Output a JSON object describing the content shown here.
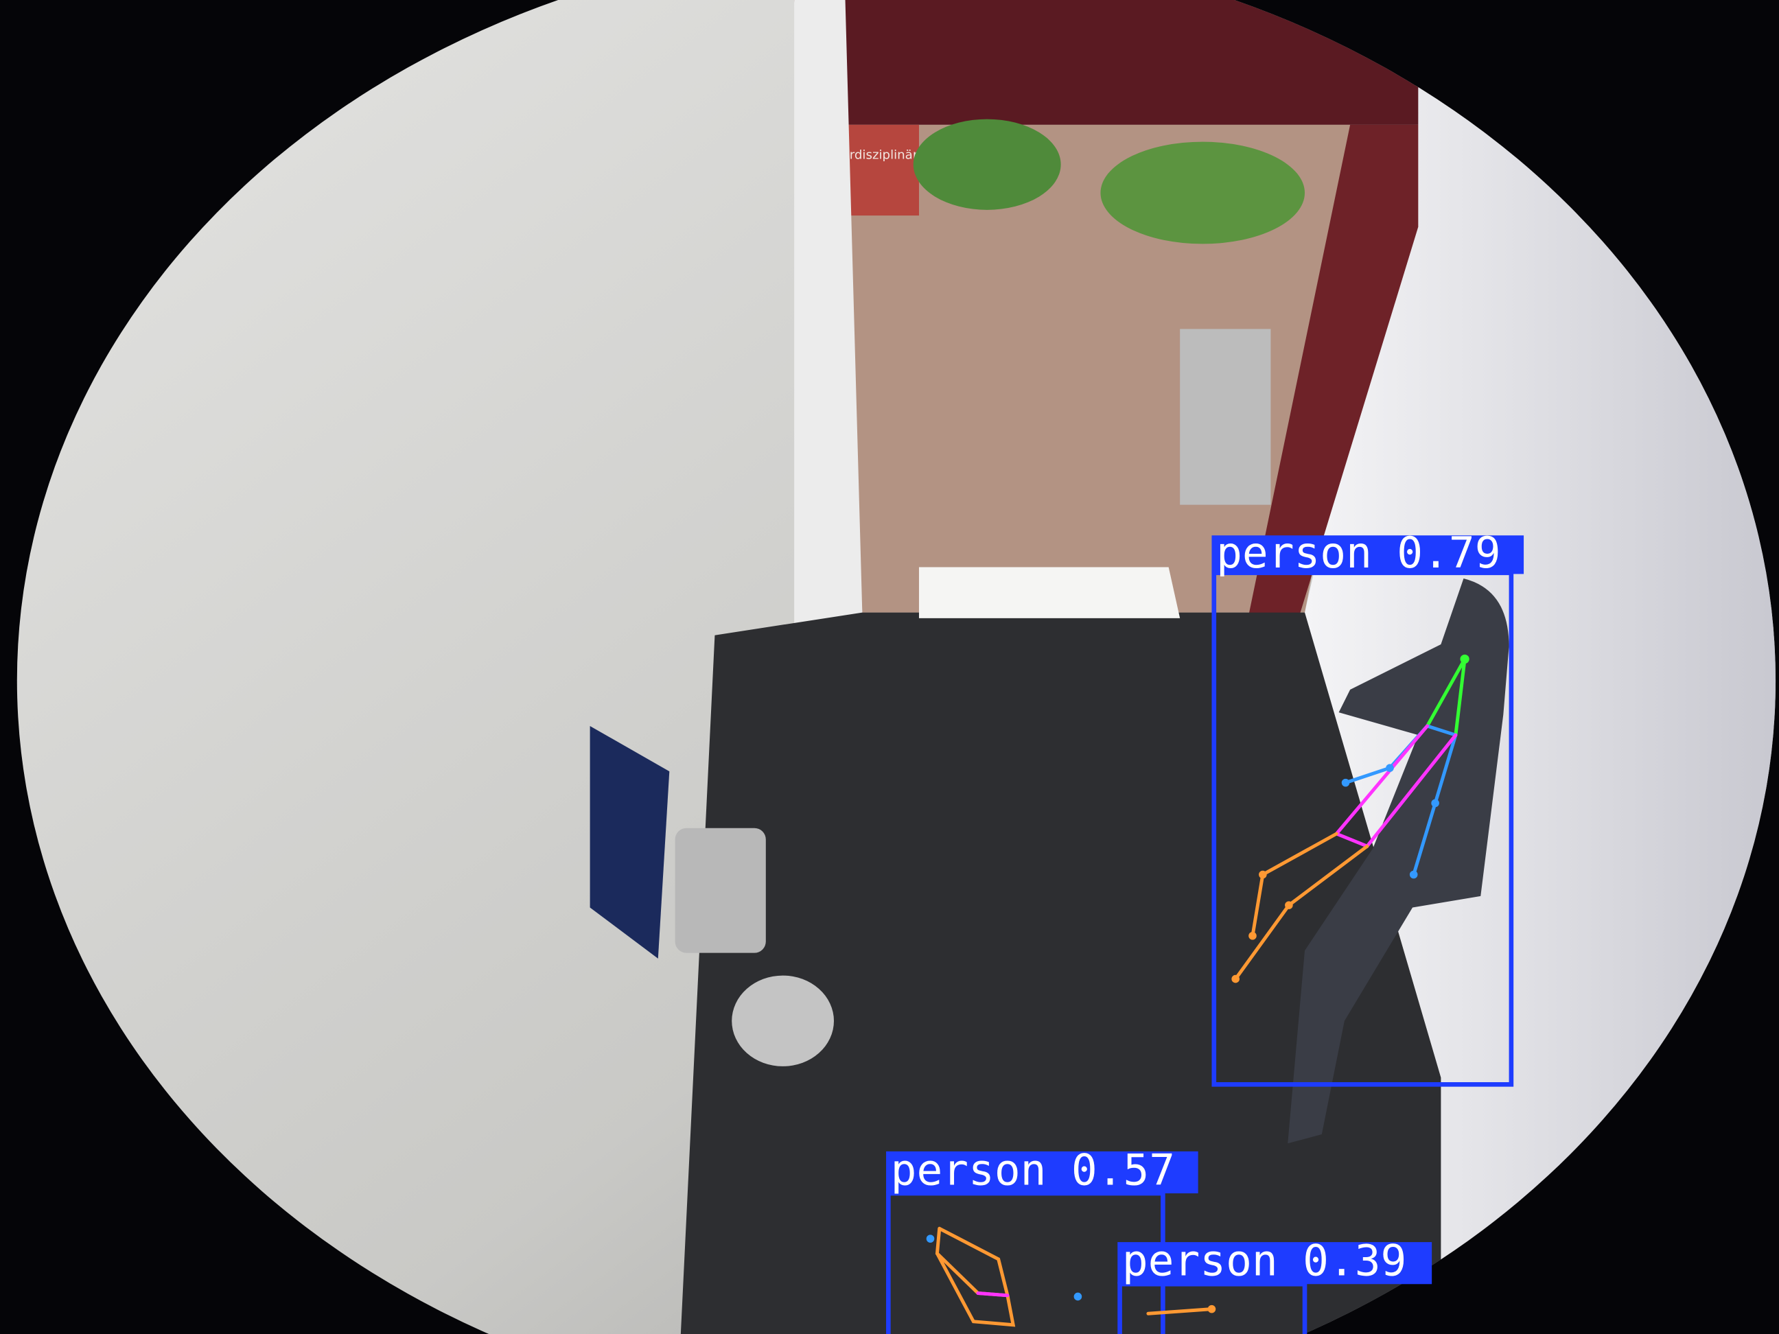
{
  "scene": {
    "sign_text": "erdisziplinär"
  },
  "detections": [
    {
      "label": "person",
      "score": 0.79
    },
    {
      "label": "person",
      "score": 0.57
    },
    {
      "label": "person",
      "score": 0.39
    }
  ]
}
